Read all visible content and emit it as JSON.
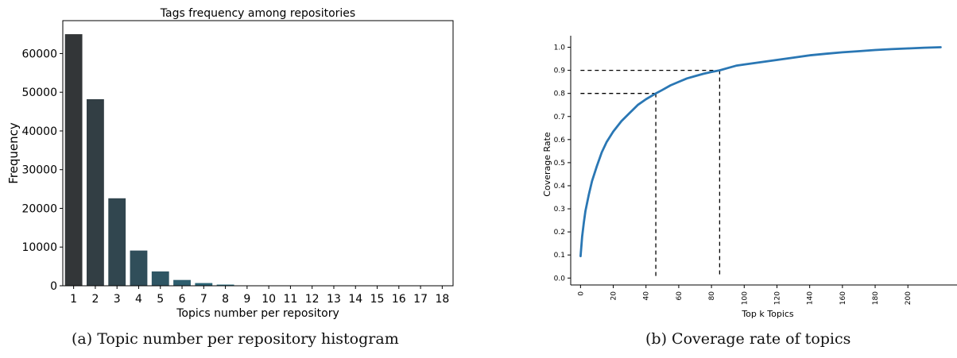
{
  "captions": {
    "a": "(a) Topic number per repository histogram",
    "b": "(b) Coverage rate of topics"
  },
  "chart_data": [
    {
      "type": "bar",
      "title": "Tags frequency among repositories",
      "xlabel": "Topics number per repository",
      "ylabel": "Frequency",
      "categories": [
        "1",
        "2",
        "3",
        "4",
        "5",
        "6",
        "7",
        "8",
        "9",
        "10",
        "11",
        "12",
        "13",
        "14",
        "15",
        "16",
        "17",
        "18"
      ],
      "values": [
        65000,
        48200,
        22600,
        9100,
        3700,
        1500,
        700,
        300,
        100,
        50,
        30,
        20,
        10,
        8,
        5,
        3,
        2,
        1
      ],
      "ylim": [
        0,
        68500
      ],
      "yticks": [
        0,
        10000,
        20000,
        30000,
        40000,
        50000,
        60000
      ],
      "grid": false,
      "colors": [
        "#333638",
        "#323e44",
        "#31464f",
        "#304e5a",
        "#2f5664",
        "#2e5e6e",
        "#2d6677",
        "#2c6e80",
        "#2b7589",
        "#2a7c91",
        "#29839a",
        "#288ba2",
        "#2791a9",
        "#2697b0",
        "#259db7",
        "#24a2bd",
        "#23a7c3",
        "#22acc9"
      ]
    },
    {
      "type": "line",
      "xlabel": "Top k Topics",
      "ylabel": "Coverage Rate",
      "xlim": [
        -6,
        230
      ],
      "ylim": [
        -0.03,
        1.05
      ],
      "xticks": [
        0,
        20,
        40,
        60,
        80,
        100,
        120,
        140,
        160,
        180,
        200
      ],
      "yticks": [
        0.0,
        0.1,
        0.2,
        0.3,
        0.4,
        0.5,
        0.6,
        0.7,
        0.8,
        0.9,
        1.0
      ],
      "grid": false,
      "series_color": "#2a77b4",
      "x": [
        0,
        1,
        2,
        3,
        5,
        7,
        10,
        13,
        16,
        20,
        25,
        30,
        35,
        40,
        46,
        50,
        55,
        60,
        65,
        70,
        75,
        80,
        85,
        90,
        95,
        100,
        110,
        120,
        130,
        140,
        150,
        160,
        170,
        180,
        190,
        200,
        210,
        220
      ],
      "y": [
        0.095,
        0.18,
        0.24,
        0.29,
        0.36,
        0.42,
        0.485,
        0.545,
        0.59,
        0.635,
        0.68,
        0.715,
        0.75,
        0.775,
        0.8,
        0.815,
        0.835,
        0.85,
        0.865,
        0.875,
        0.885,
        0.893,
        0.9,
        0.91,
        0.92,
        0.925,
        0.935,
        0.945,
        0.955,
        0.965,
        0.972,
        0.978,
        0.983,
        0.988,
        0.992,
        0.995,
        0.998,
        1.0
      ],
      "reference_lines": [
        {
          "x": 46,
          "y": 0.8
        },
        {
          "x": 85,
          "y": 0.9
        }
      ]
    }
  ]
}
